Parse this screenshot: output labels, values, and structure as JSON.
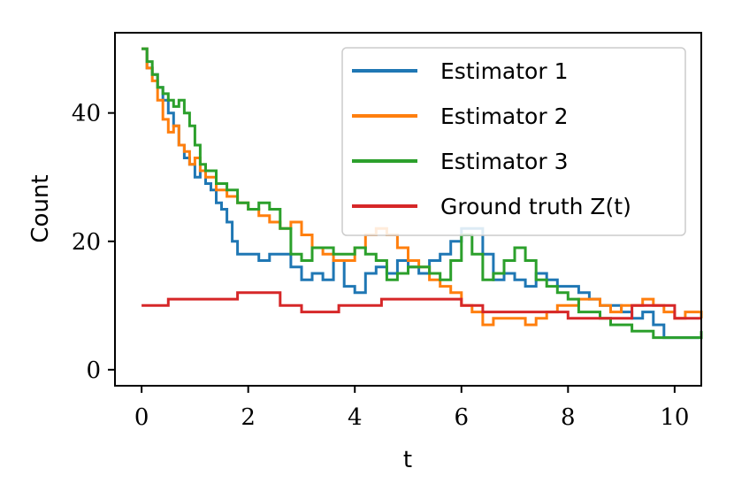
{
  "chart_data": {
    "type": "line",
    "step": true,
    "xlabel": "t",
    "ylabel": "Count",
    "xlim": [
      -0.5,
      10.5
    ],
    "ylim": [
      -2.5,
      52.5
    ],
    "xticks": [
      0,
      2,
      4,
      6,
      8,
      10
    ],
    "yticks": [
      0,
      20,
      40
    ],
    "grid": false,
    "legend_position": "top-right",
    "series": [
      {
        "name": "Estimator 1",
        "color": "#1f77b4",
        "points": [
          [
            0,
            50
          ],
          [
            0.1,
            47
          ],
          [
            0.2,
            46
          ],
          [
            0.3,
            44
          ],
          [
            0.4,
            42
          ],
          [
            0.5,
            40
          ],
          [
            0.6,
            38
          ],
          [
            0.7,
            35
          ],
          [
            0.8,
            33
          ],
          [
            0.9,
            32
          ],
          [
            1.0,
            30
          ],
          [
            1.1,
            31
          ],
          [
            1.2,
            29
          ],
          [
            1.3,
            28
          ],
          [
            1.4,
            26
          ],
          [
            1.5,
            25
          ],
          [
            1.6,
            23
          ],
          [
            1.7,
            20
          ],
          [
            1.8,
            18
          ],
          [
            2.0,
            18
          ],
          [
            2.2,
            17
          ],
          [
            2.4,
            18
          ],
          [
            2.6,
            18
          ],
          [
            2.8,
            16
          ],
          [
            3.0,
            14
          ],
          [
            3.2,
            15
          ],
          [
            3.4,
            14
          ],
          [
            3.6,
            17
          ],
          [
            3.8,
            13
          ],
          [
            4.0,
            12
          ],
          [
            4.2,
            15
          ],
          [
            4.4,
            16
          ],
          [
            4.6,
            15
          ],
          [
            4.8,
            17
          ],
          [
            5.0,
            16
          ],
          [
            5.2,
            15
          ],
          [
            5.4,
            17
          ],
          [
            5.6,
            18
          ],
          [
            5.8,
            20
          ],
          [
            6.0,
            22
          ],
          [
            6.2,
            22
          ],
          [
            6.4,
            18
          ],
          [
            6.6,
            14
          ],
          [
            6.8,
            15
          ],
          [
            7.0,
            14
          ],
          [
            7.2,
            13
          ],
          [
            7.4,
            15
          ],
          [
            7.6,
            14
          ],
          [
            7.8,
            13
          ],
          [
            8.0,
            13
          ],
          [
            8.2,
            12
          ],
          [
            8.4,
            11
          ],
          [
            8.6,
            10
          ],
          [
            8.8,
            10
          ],
          [
            9.0,
            9
          ],
          [
            9.2,
            8
          ],
          [
            9.4,
            9
          ],
          [
            9.6,
            7
          ],
          [
            9.8,
            5
          ],
          [
            10.0,
            5
          ],
          [
            10.2,
            5
          ],
          [
            10.5,
            6
          ]
        ]
      },
      {
        "name": "Estimator 2",
        "color": "#ff7f0e",
        "points": [
          [
            0,
            50
          ],
          [
            0.1,
            47
          ],
          [
            0.2,
            45
          ],
          [
            0.3,
            42
          ],
          [
            0.4,
            39
          ],
          [
            0.5,
            37
          ],
          [
            0.6,
            38
          ],
          [
            0.7,
            35
          ],
          [
            0.8,
            34
          ],
          [
            0.9,
            32
          ],
          [
            1.0,
            33
          ],
          [
            1.1,
            31
          ],
          [
            1.2,
            30
          ],
          [
            1.4,
            28
          ],
          [
            1.6,
            27
          ],
          [
            1.8,
            26
          ],
          [
            2.0,
            25
          ],
          [
            2.2,
            24
          ],
          [
            2.4,
            23
          ],
          [
            2.6,
            22
          ],
          [
            2.8,
            23
          ],
          [
            3.0,
            21
          ],
          [
            3.2,
            19
          ],
          [
            3.4,
            18
          ],
          [
            3.6,
            17
          ],
          [
            3.8,
            17
          ],
          [
            4.0,
            19
          ],
          [
            4.2,
            21
          ],
          [
            4.4,
            22
          ],
          [
            4.6,
            21
          ],
          [
            4.8,
            19
          ],
          [
            5.0,
            17
          ],
          [
            5.2,
            16
          ],
          [
            5.4,
            14
          ],
          [
            5.6,
            13
          ],
          [
            5.8,
            12
          ],
          [
            6.0,
            10
          ],
          [
            6.2,
            9
          ],
          [
            6.4,
            7
          ],
          [
            6.6,
            8
          ],
          [
            6.8,
            8
          ],
          [
            7.0,
            8
          ],
          [
            7.2,
            7
          ],
          [
            7.4,
            8
          ],
          [
            7.6,
            9
          ],
          [
            7.8,
            10
          ],
          [
            8.0,
            10
          ],
          [
            8.2,
            11
          ],
          [
            8.4,
            11
          ],
          [
            8.6,
            10
          ],
          [
            8.8,
            9
          ],
          [
            9.0,
            10
          ],
          [
            9.2,
            10
          ],
          [
            9.4,
            11
          ],
          [
            9.6,
            10
          ],
          [
            9.8,
            9
          ],
          [
            10.0,
            8
          ],
          [
            10.2,
            9
          ],
          [
            10.5,
            8
          ]
        ]
      },
      {
        "name": "Estimator 3",
        "color": "#2ca02c",
        "points": [
          [
            0,
            50
          ],
          [
            0.1,
            48
          ],
          [
            0.2,
            46
          ],
          [
            0.3,
            44
          ],
          [
            0.4,
            43
          ],
          [
            0.5,
            42
          ],
          [
            0.6,
            41
          ],
          [
            0.7,
            42
          ],
          [
            0.8,
            40
          ],
          [
            0.9,
            38
          ],
          [
            1.0,
            35
          ],
          [
            1.1,
            32
          ],
          [
            1.2,
            31
          ],
          [
            1.4,
            29
          ],
          [
            1.6,
            28
          ],
          [
            1.8,
            26
          ],
          [
            2.0,
            25
          ],
          [
            2.2,
            26
          ],
          [
            2.4,
            25
          ],
          [
            2.6,
            22
          ],
          [
            2.8,
            18
          ],
          [
            3.0,
            17
          ],
          [
            3.2,
            19
          ],
          [
            3.4,
            19
          ],
          [
            3.6,
            18
          ],
          [
            3.8,
            18
          ],
          [
            4.0,
            19
          ],
          [
            4.2,
            18
          ],
          [
            4.4,
            17
          ],
          [
            4.6,
            14
          ],
          [
            4.8,
            15
          ],
          [
            5.0,
            16
          ],
          [
            5.2,
            16
          ],
          [
            5.4,
            15
          ],
          [
            5.6,
            14
          ],
          [
            5.8,
            17
          ],
          [
            6.0,
            21
          ],
          [
            6.2,
            18
          ],
          [
            6.4,
            14
          ],
          [
            6.6,
            15
          ],
          [
            6.8,
            17
          ],
          [
            7.0,
            19
          ],
          [
            7.2,
            17
          ],
          [
            7.4,
            14
          ],
          [
            7.6,
            13
          ],
          [
            7.8,
            12
          ],
          [
            8.0,
            11
          ],
          [
            8.2,
            9
          ],
          [
            8.4,
            9
          ],
          [
            8.6,
            8
          ],
          [
            8.8,
            7
          ],
          [
            9.0,
            7
          ],
          [
            9.2,
            6
          ],
          [
            9.4,
            6
          ],
          [
            9.6,
            5
          ],
          [
            9.8,
            5
          ],
          [
            10.0,
            5
          ],
          [
            10.2,
            5
          ],
          [
            10.5,
            6
          ]
        ]
      },
      {
        "name": "Ground truth Z(t)",
        "color": "#d62728",
        "points": [
          [
            0,
            10
          ],
          [
            0.5,
            11
          ],
          [
            1.8,
            12
          ],
          [
            2.6,
            10
          ],
          [
            3.0,
            9
          ],
          [
            3.7,
            10
          ],
          [
            4.5,
            11
          ],
          [
            6.0,
            10
          ],
          [
            6.4,
            9
          ],
          [
            8.0,
            8
          ],
          [
            9.2,
            10
          ],
          [
            10.0,
            8
          ],
          [
            10.5,
            8
          ]
        ]
      }
    ]
  }
}
